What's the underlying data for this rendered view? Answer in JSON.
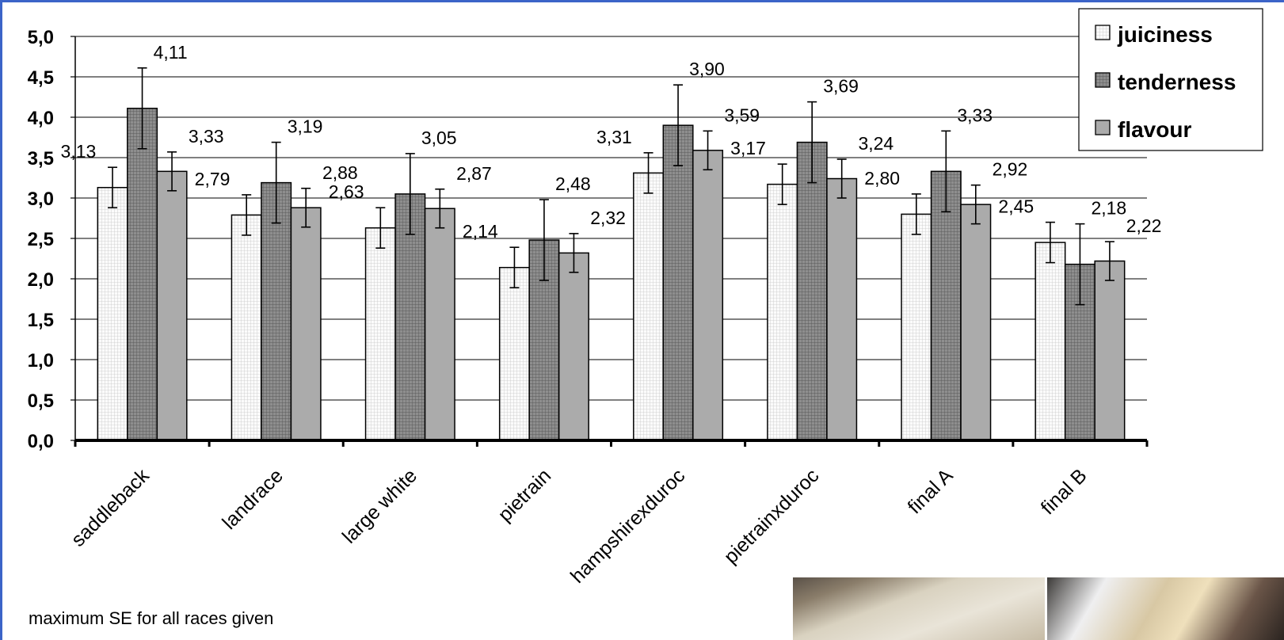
{
  "chart_data": {
    "type": "bar",
    "categories": [
      "saddleback",
      "landrace",
      "large white",
      "pietrain",
      "hampshirexduroc",
      "pietrainxduroc",
      "final A",
      "final B"
    ],
    "series": [
      {
        "name": "juiciness",
        "values": [
          3.13,
          2.79,
          2.63,
          2.14,
          3.31,
          3.17,
          2.8,
          2.45
        ],
        "labels": [
          "3,13",
          "2,79",
          "2,63",
          "2,14",
          "3,31",
          "3,17",
          "2,80",
          "2,45"
        ],
        "error": 0.25,
        "pattern": "light-grid"
      },
      {
        "name": "tenderness",
        "values": [
          4.11,
          3.19,
          3.05,
          2.48,
          3.9,
          3.69,
          3.33,
          2.18
        ],
        "labels": [
          "4,11",
          "3,19",
          "3,05",
          "2,48",
          "3,90",
          "3,69",
          "3,33",
          "2,18"
        ],
        "error": 0.5,
        "pattern": "dark-grid"
      },
      {
        "name": "flavour",
        "values": [
          3.33,
          2.88,
          2.87,
          2.32,
          3.59,
          3.24,
          2.92,
          2.22
        ],
        "labels": [
          "3,33",
          "2,88",
          "2,87",
          "2,32",
          "3,59",
          "3,24",
          "2,92",
          "2,22"
        ],
        "error": 0.24,
        "pattern": "solid-gray"
      }
    ],
    "ylim": [
      0,
      5
    ],
    "yticks": [
      "0,0",
      "0,5",
      "1,0",
      "1,5",
      "2,0",
      "2,5",
      "3,0",
      "3,5",
      "4,0",
      "4,5",
      "5,0"
    ],
    "grid": true,
    "legend_position": "top-right",
    "colors": {
      "juiciness": "#f4f4f4",
      "tenderness": "#9a9a9a",
      "flavour": "#b0b0b0",
      "frame": "#3c64c8"
    }
  },
  "footnote": "maximum SE for all races given"
}
